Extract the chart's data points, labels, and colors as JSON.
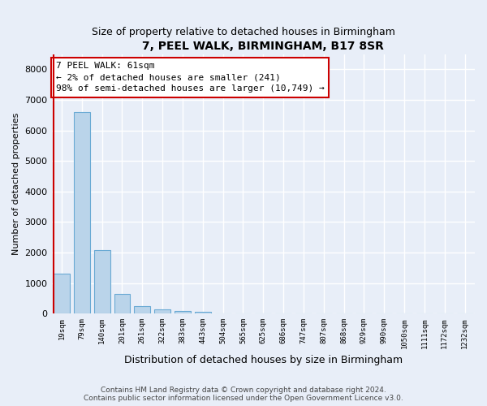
{
  "title": "7, PEEL WALK, BIRMINGHAM, B17 8SR",
  "subtitle": "Size of property relative to detached houses in Birmingham",
  "xlabel": "Distribution of detached houses by size in Birmingham",
  "ylabel": "Number of detached properties",
  "footer_line1": "Contains HM Land Registry data © Crown copyright and database right 2024.",
  "footer_line2": "Contains public sector information licensed under the Open Government Licence v3.0.",
  "annotation_line1": "7 PEEL WALK: 61sqm",
  "annotation_line2": "← 2% of detached houses are smaller (241)",
  "annotation_line3": "98% of semi-detached houses are larger (10,749) →",
  "bar_color": "#bad4ea",
  "bar_edge_color": "#6aaad4",
  "categories": [
    "19sqm",
    "79sqm",
    "140sqm",
    "201sqm",
    "261sqm",
    "322sqm",
    "383sqm",
    "443sqm",
    "504sqm",
    "565sqm",
    "625sqm",
    "686sqm",
    "747sqm",
    "807sqm",
    "868sqm",
    "929sqm",
    "990sqm",
    "1050sqm",
    "1111sqm",
    "1172sqm",
    "1232sqm"
  ],
  "values": [
    1300,
    6600,
    2080,
    640,
    250,
    130,
    95,
    55,
    0,
    0,
    0,
    0,
    0,
    0,
    0,
    0,
    0,
    0,
    0,
    0,
    0
  ],
  "ylim": [
    0,
    8500
  ],
  "yticks": [
    0,
    1000,
    2000,
    3000,
    4000,
    5000,
    6000,
    7000,
    8000
  ],
  "background_color": "#e8eef8",
  "grid_color": "#ffffff",
  "annotation_box_facecolor": "#ffffff",
  "annotation_box_edgecolor": "#cc0000",
  "vline_color": "#cc0000",
  "title_fontsize": 10,
  "subtitle_fontsize": 9,
  "footer_fontsize": 6.5
}
